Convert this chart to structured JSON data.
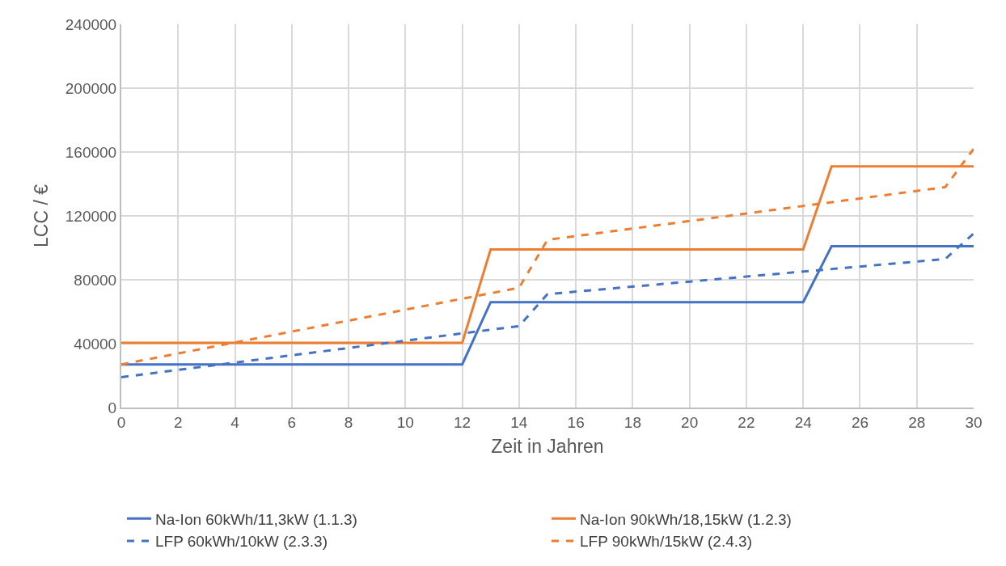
{
  "chart_data": {
    "type": "line",
    "xlabel": "Zeit in Jahren",
    "ylabel": "LCC / €",
    "xlim": [
      0,
      30
    ],
    "xticks": [
      0,
      2,
      4,
      6,
      8,
      10,
      12,
      14,
      16,
      18,
      20,
      22,
      24,
      26,
      28,
      30
    ],
    "ylim": [
      0,
      240000
    ],
    "yticks": [
      0,
      40000,
      80000,
      120000,
      160000,
      200000,
      240000
    ],
    "grid": true,
    "legend": "bottom",
    "marker": "none",
    "series": [
      {
        "name": "Na-Ion 60kWh/11,3kW (1.1.3)",
        "color": "#4472c4",
        "line_style": "solid",
        "x": [
          0,
          12,
          13,
          24,
          25,
          30
        ],
        "values": [
          27000,
          27000,
          66000,
          66000,
          101000,
          101000
        ]
      },
      {
        "name": "Na-Ion 90kWh/18,15kW (1.2.3)",
        "color": "#ed7d31",
        "line_style": "solid",
        "x": [
          0,
          12,
          13,
          24,
          25,
          30
        ],
        "values": [
          40500,
          40500,
          99000,
          99000,
          151000,
          151000
        ]
      },
      {
        "name": "LFP 60kWh/10kW (2.3.3)",
        "color": "#4472c4",
        "line_style": "dashed",
        "x": [
          0,
          14,
          15,
          29,
          30
        ],
        "values": [
          19000,
          51000,
          71000,
          93000,
          109000
        ]
      },
      {
        "name": "LFP 90kWh/15kW (2.4.3)",
        "color": "#ed7d31",
        "line_style": "dashed",
        "x": [
          0,
          14,
          15,
          29,
          30
        ],
        "values": [
          27000,
          75000,
          105000,
          138000,
          162000
        ]
      }
    ]
  }
}
